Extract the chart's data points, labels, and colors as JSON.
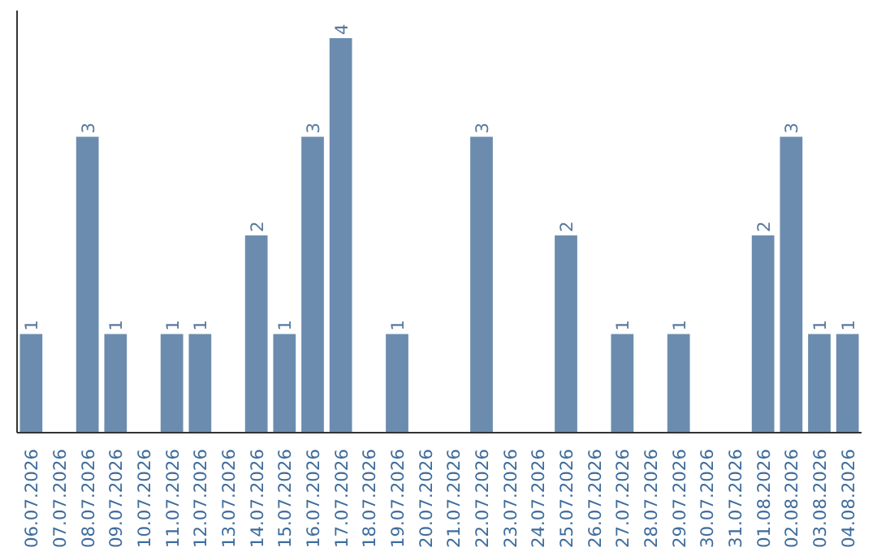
{
  "chart_data": {
    "type": "bar",
    "categories": [
      "06.07.2026",
      "07.07.2026",
      "08.07.2026",
      "09.07.2026",
      "10.07.2026",
      "11.07.2026",
      "12.07.2026",
      "13.07.2026",
      "14.07.2026",
      "15.07.2026",
      "16.07.2026",
      "17.07.2026",
      "18.07.2026",
      "19.07.2026",
      "20.07.2026",
      "21.07.2026",
      "22.07.2026",
      "23.07.2026",
      "24.07.2026",
      "25.07.2026",
      "26.07.2026",
      "27.07.2026",
      "28.07.2026",
      "29.07.2026",
      "30.07.2026",
      "31.07.2026",
      "01.08.2026",
      "02.08.2026",
      "03.08.2026",
      "04.08.2026"
    ],
    "values": [
      1,
      0,
      3,
      1,
      0,
      1,
      1,
      0,
      2,
      1,
      3,
      4,
      0,
      1,
      0,
      0,
      3,
      0,
      0,
      2,
      0,
      1,
      0,
      1,
      0,
      0,
      2,
      3,
      1,
      1
    ],
    "value_labels": [
      "1",
      null,
      "3",
      "1",
      null,
      "1",
      "1",
      null,
      "2",
      "1",
      "3",
      "4",
      null,
      "1",
      null,
      null,
      "3",
      null,
      null,
      "2",
      null,
      "1",
      null,
      "1",
      null,
      null,
      "2",
      "3",
      "1",
      "1"
    ],
    "color": "#6b8cae",
    "grid": false,
    "tick_labels": "x"
  }
}
